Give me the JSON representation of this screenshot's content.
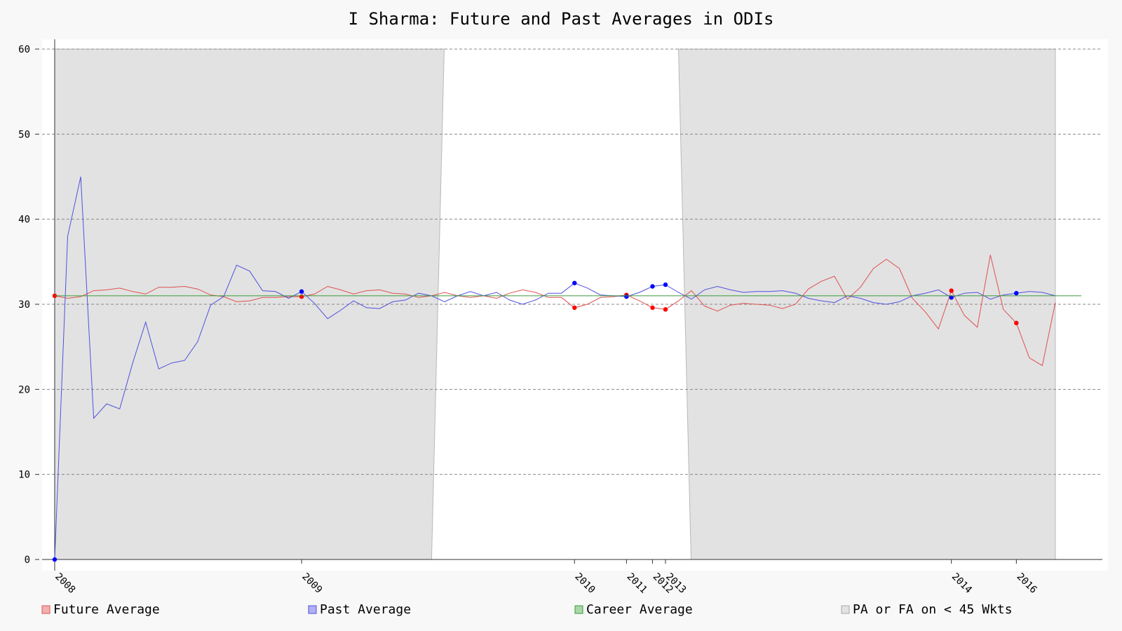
{
  "chart_data": {
    "type": "line",
    "title": "I Sharma: Future and Past Averages in ODIs",
    "xlabel": "",
    "ylabel": "",
    "ylim": [
      0,
      60
    ],
    "y_ticks": [
      0,
      10,
      20,
      30,
      40,
      50,
      60
    ],
    "grid": "horizontal dashed",
    "legend_position": "bottom",
    "match_count": 80,
    "year_markers": [
      {
        "label": "2008",
        "match": 0
      },
      {
        "label": "2009",
        "match": 19
      },
      {
        "label": "2010",
        "match": 40
      },
      {
        "label": "2011",
        "match": 44
      },
      {
        "label": "2012",
        "match": 46
      },
      {
        "label": "2013",
        "match": 47
      },
      {
        "label": "2014",
        "match": 69
      },
      {
        "label": "2016",
        "match": 74
      }
    ],
    "career_average": 31.0,
    "series": [
      {
        "name": "Future Average",
        "color": "#e05050",
        "values": [
          31.0,
          30.7,
          30.9,
          31.6,
          31.7,
          31.9,
          31.5,
          31.2,
          32.0,
          32.0,
          32.1,
          31.8,
          31.1,
          30.9,
          30.3,
          30.4,
          30.8,
          30.8,
          30.9,
          30.9,
          31.2,
          32.1,
          31.7,
          31.2,
          31.6,
          31.7,
          31.3,
          31.2,
          30.8,
          31.0,
          31.4,
          31.0,
          30.8,
          31.0,
          30.7,
          31.3,
          31.7,
          31.4,
          30.8,
          30.8,
          29.6,
          30.0,
          30.8,
          30.9,
          31.1,
          30.4,
          29.6,
          29.4,
          30.4,
          31.6,
          29.8,
          29.2,
          29.9,
          30.1,
          30.0,
          29.9,
          29.5,
          30.0,
          31.8,
          32.7,
          33.3,
          30.6,
          32.0,
          34.2,
          35.3,
          34.2,
          30.7,
          29.1,
          27.1,
          31.6,
          28.7,
          27.3,
          35.8,
          29.4,
          27.8,
          23.7,
          22.8,
          30.2
        ],
        "highlighted_points": [
          0,
          19,
          40,
          44,
          46,
          47,
          69,
          74
        ]
      },
      {
        "name": "Past Average",
        "color": "#5050e0",
        "values": [
          0,
          38.0,
          45.0,
          16.6,
          18.3,
          17.7,
          23.1,
          27.9,
          22.4,
          23.1,
          23.4,
          25.6,
          29.9,
          30.9,
          34.6,
          33.9,
          31.6,
          31.5,
          30.7,
          31.5,
          30.1,
          28.3,
          29.3,
          30.4,
          29.6,
          29.5,
          30.3,
          30.5,
          31.3,
          31.0,
          30.3,
          31.0,
          31.5,
          31.0,
          31.4,
          30.5,
          30.0,
          30.5,
          31.3,
          31.3,
          32.5,
          31.9,
          31.1,
          31.0,
          30.9,
          31.4,
          32.1,
          32.3,
          31.4,
          30.6,
          31.7,
          32.1,
          31.7,
          31.4,
          31.5,
          31.5,
          31.6,
          31.3,
          30.7,
          30.4,
          30.2,
          31.0,
          30.7,
          30.2,
          30.0,
          30.3,
          31.0,
          31.3,
          31.7,
          30.8,
          31.3,
          31.4,
          30.6,
          31.1,
          31.3,
          31.5,
          31.4,
          31.0
        ],
        "highlighted_points": [
          0,
          19,
          40,
          44,
          46,
          47,
          69,
          74
        ]
      },
      {
        "name": "Career Average",
        "color": "#3a9a3a",
        "values": [
          31.0,
          31.0
        ]
      }
    ],
    "shaded_region": {
      "name": "PA or FA on < 45 Wkts",
      "color": "#e2e2e2",
      "upper": 60,
      "segments": [
        {
          "from": 0,
          "to": 29
        },
        {
          "from": 48,
          "to": 77
        }
      ]
    }
  }
}
